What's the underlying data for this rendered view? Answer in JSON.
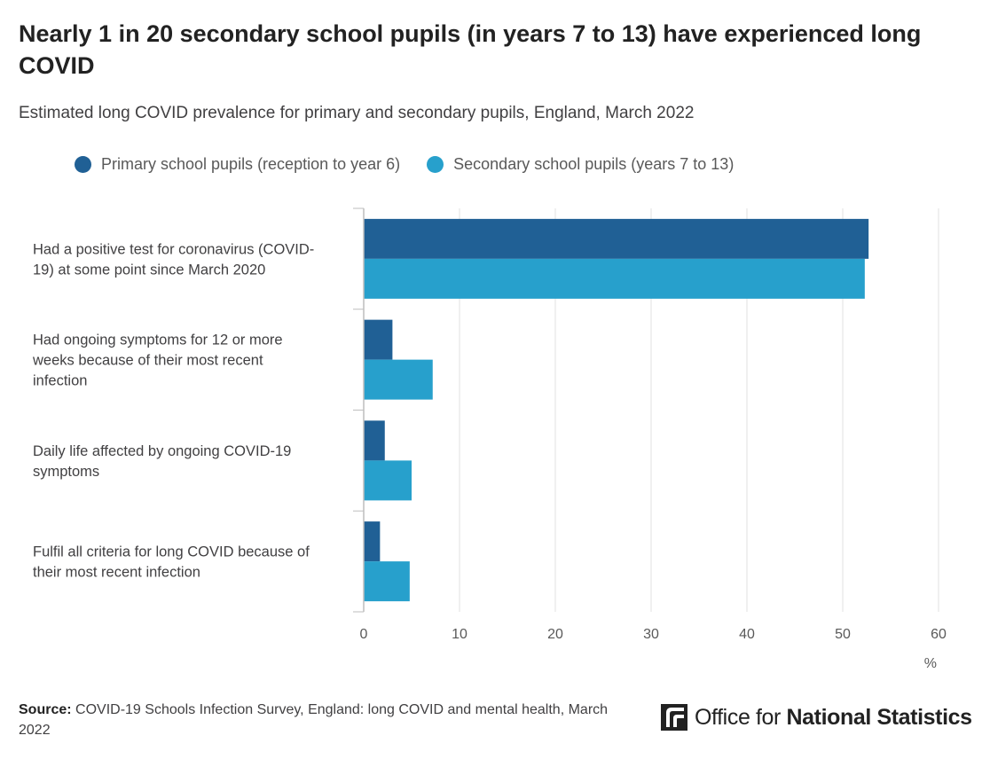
{
  "title": "Nearly 1 in 20 secondary school pupils (in years 7 to 13) have experienced long COVID",
  "subtitle": "Estimated long COVID prevalence for primary and secondary pupils, England, March 2022",
  "colors": {
    "primary": "#206095",
    "secondary": "#27a0cc",
    "grid": "#e0e0e0",
    "axis": "#bebebe"
  },
  "source": {
    "label": "Source:",
    "text": "COVID-19 Schools Infection Survey, England: long COVID and mental health, March 2022"
  },
  "logo": {
    "text_regular": "Office for ",
    "text_bold": "National Statistics",
    "icon": "ons-logo-icon"
  },
  "chart_data": {
    "type": "bar",
    "orientation": "horizontal",
    "categories": [
      [
        "Had a positive test for coronavirus (COVID-",
        "19) at some point since March 2020"
      ],
      [
        "Had ongoing symptoms for 12 or more",
        "weeks because of their most recent",
        "infection"
      ],
      [
        "Daily life affected by ongoing COVID-19",
        "symptoms"
      ],
      [
        "Fulfil all criteria for long COVID because of",
        "their most recent infection"
      ]
    ],
    "series": [
      {
        "name": "Primary school pupils (reception to year 6)",
        "color": "#206095",
        "values": [
          52.7,
          3.0,
          2.2,
          1.7
        ]
      },
      {
        "name": "Secondary school pupils (years 7 to 13)",
        "color": "#27a0cc",
        "values": [
          52.3,
          7.2,
          5.0,
          4.8
        ]
      }
    ],
    "xlim": [
      0,
      60
    ],
    "xticks": [
      0,
      10,
      20,
      30,
      40,
      50,
      60
    ],
    "xlabel": "%",
    "grid": true,
    "legend": "top"
  }
}
